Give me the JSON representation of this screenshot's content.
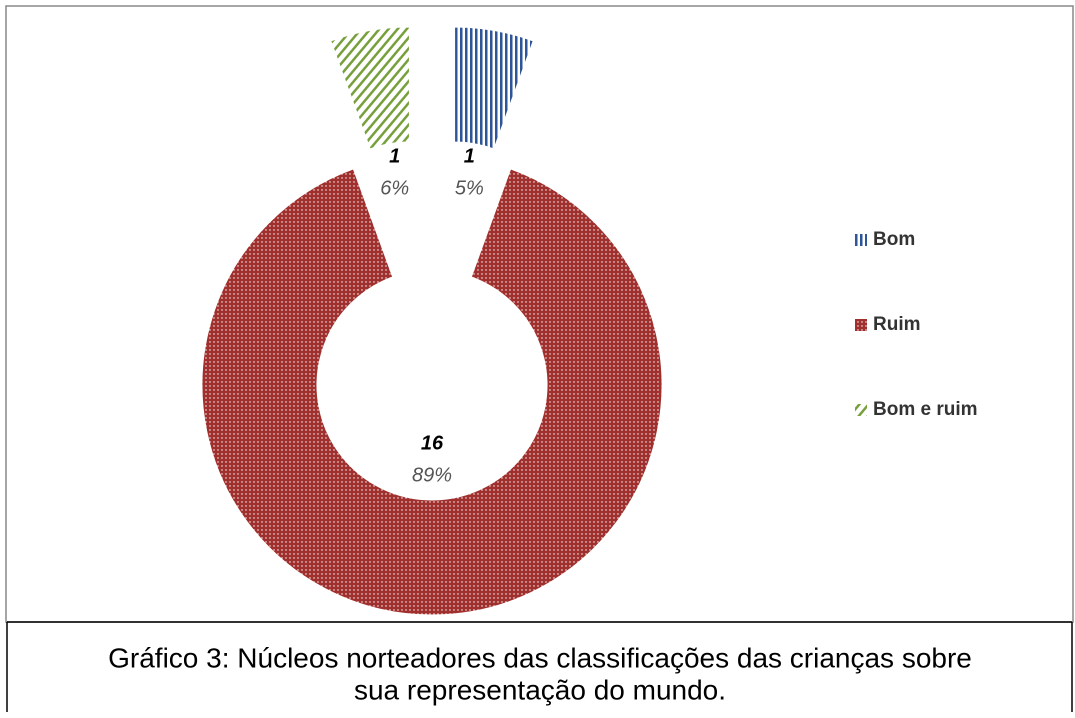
{
  "chart_data": {
    "type": "donut",
    "categories": [
      "Bom",
      "Ruim",
      "Bom e ruim"
    ],
    "values": [
      1,
      16,
      1
    ],
    "percentages": [
      5,
      89,
      6
    ],
    "percentage_labels": [
      "5%",
      "89%",
      "6%"
    ],
    "colors": [
      "#2e5597",
      "#a0302d",
      "#77a03c"
    ],
    "legend": "right"
  },
  "caption_lines": [
    "Gráfico 3: Núcleos norteadores das classificações das crianças sobre",
    "sua representação do mundo."
  ]
}
